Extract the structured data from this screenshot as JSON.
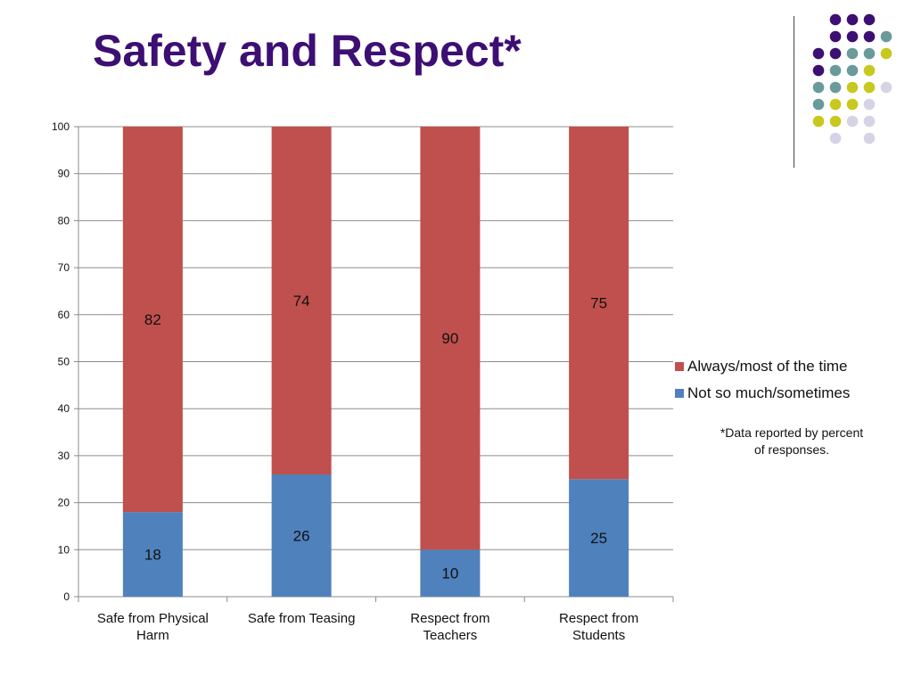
{
  "title": "Safety and Respect*",
  "colors": {
    "title": "#3d0f73",
    "series_always": "#c0504d",
    "series_not": "#4f81bd",
    "dot_purple": "#3d0f73",
    "dot_teal": "#6a9a9a",
    "dot_yellow": "#c8c81e",
    "dot_lavender": "#d4d4e6"
  },
  "note": {
    "line1": "*Data reported by  percent",
    "line2": "of responses."
  },
  "chart_data": {
    "type": "bar",
    "stacked": true,
    "categories": [
      [
        "Safe from Physical",
        "Harm"
      ],
      [
        "Safe from Teasing"
      ],
      [
        "Respect from",
        "Teachers"
      ],
      [
        "Respect from",
        "Students"
      ]
    ],
    "series": [
      {
        "name": "Not so much/sometimes",
        "values": [
          18,
          26,
          10,
          25
        ]
      },
      {
        "name": "Always/most of the time",
        "values": [
          82,
          74,
          90,
          75
        ]
      }
    ],
    "legend_order": [
      1,
      0
    ],
    "legend_position": "right",
    "ylim": [
      0,
      100
    ],
    "yticks": [
      0,
      10,
      20,
      30,
      40,
      50,
      60,
      70,
      80,
      90,
      100
    ],
    "grid": true,
    "data_labels": true
  }
}
